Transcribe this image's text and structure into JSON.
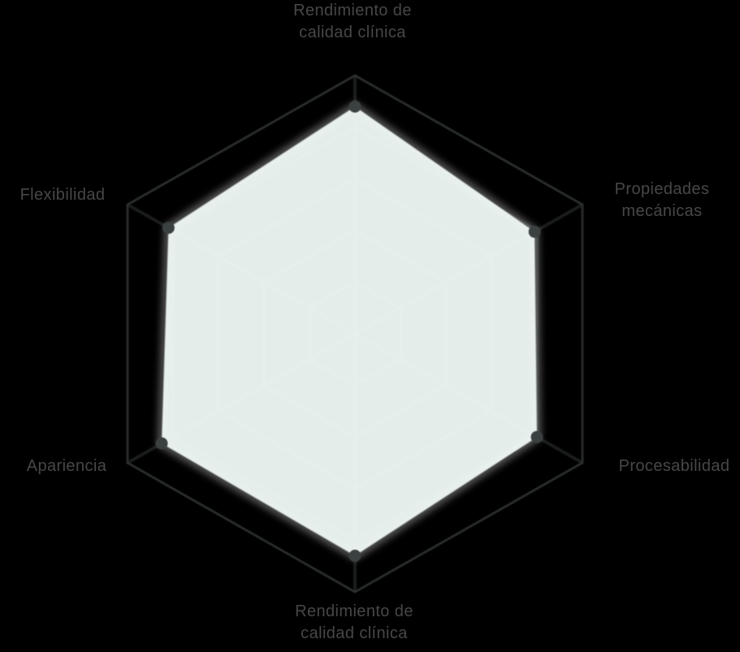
{
  "page": {
    "background": "#000000"
  },
  "chart_data": {
    "type": "radar",
    "title": "",
    "legend": "none",
    "grid": "on",
    "axes": [
      {
        "id": "clinical-quality-top",
        "lines": [
          "Rendimiento de",
          "calidad clínica"
        ]
      },
      {
        "id": "mechanical-properties",
        "lines": [
          "Propiedades",
          "mecánicas"
        ]
      },
      {
        "id": "processability",
        "lines": [
          "Procesabilidad"
        ]
      },
      {
        "id": "clinical-quality-bottom",
        "lines": [
          "Rendimiento de",
          "calidad clínica"
        ]
      },
      {
        "id": "appearance",
        "lines": [
          "Apariencia"
        ]
      },
      {
        "id": "flexibility",
        "lines": [
          "Flexibilidad"
        ]
      }
    ],
    "series": [
      {
        "name": "material-profile",
        "values": [
          0.88,
          0.79,
          0.8,
          0.86,
          0.85,
          0.82
        ]
      }
    ],
    "scale": {
      "min": 0,
      "max": 1,
      "grid_levels": 5
    },
    "colors": {
      "background": "#000000",
      "grid_line": "#2e3232",
      "outline": "#2e3232",
      "fill": "#f1faf8",
      "fill_opacity": "0.95",
      "glow": "#ffffff",
      "point": "#3b3f3f",
      "label_text": "#474747"
    }
  }
}
